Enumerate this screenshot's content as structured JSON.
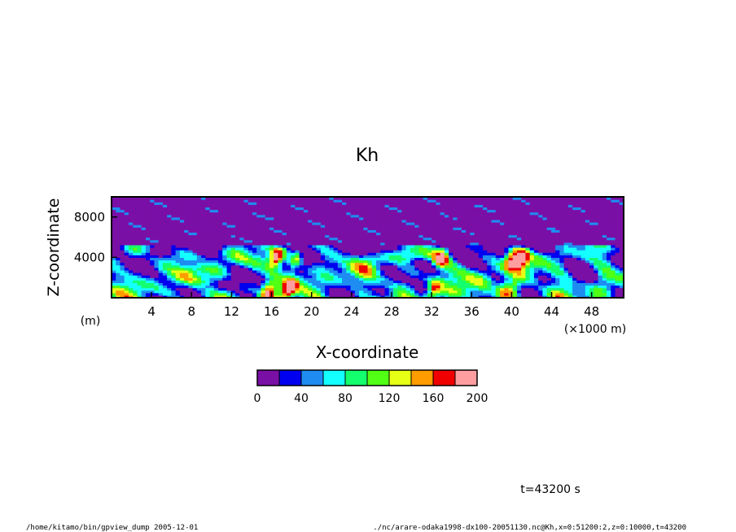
{
  "chart_data": {
    "type": "heatmap",
    "title": "Kh",
    "xlabel": "X-coordinate",
    "ylabel": "Z-coordinate",
    "x_unit": "(×1000 m)",
    "y_unit": "(m)",
    "xlim": [
      0,
      51.2
    ],
    "ylim": [
      0,
      10000
    ],
    "x_ticks": [
      4,
      8,
      12,
      16,
      20,
      24,
      28,
      32,
      36,
      40,
      44,
      48
    ],
    "x_tick_labels": [
      "4",
      "8",
      "12",
      "16",
      "20",
      "24",
      "28",
      "32",
      "36",
      "40",
      "44",
      "48"
    ],
    "y_ticks": [
      4000,
      8000
    ],
    "y_tick_labels": [
      "4000",
      "8000"
    ],
    "colorbar": {
      "levels": [
        0,
        20,
        40,
        60,
        80,
        100,
        120,
        140,
        160,
        180,
        200
      ],
      "tick_values": [
        0,
        40,
        80,
        120,
        160,
        200
      ],
      "tick_labels": [
        "0",
        "40",
        "80",
        "120",
        "160",
        "200"
      ],
      "colors": [
        "#7a0fa6",
        "#0000f0",
        "#1e8cf0",
        "#14ffff",
        "#14ff6e",
        "#50ff14",
        "#e6ff14",
        "#ff9c00",
        "#f00000",
        "#ff9ea0"
      ]
    },
    "time_label": "t=43200 s",
    "grid": false,
    "legend": "colorbar-below"
  },
  "footer": {
    "left": "/home/kitamo/bin/gpview_dump  2005-12-01",
    "right": "./nc/arare-odaka1998-dx100-20051130.nc@Kh,x=0:51200:2,z=0:10000,t=43200"
  }
}
